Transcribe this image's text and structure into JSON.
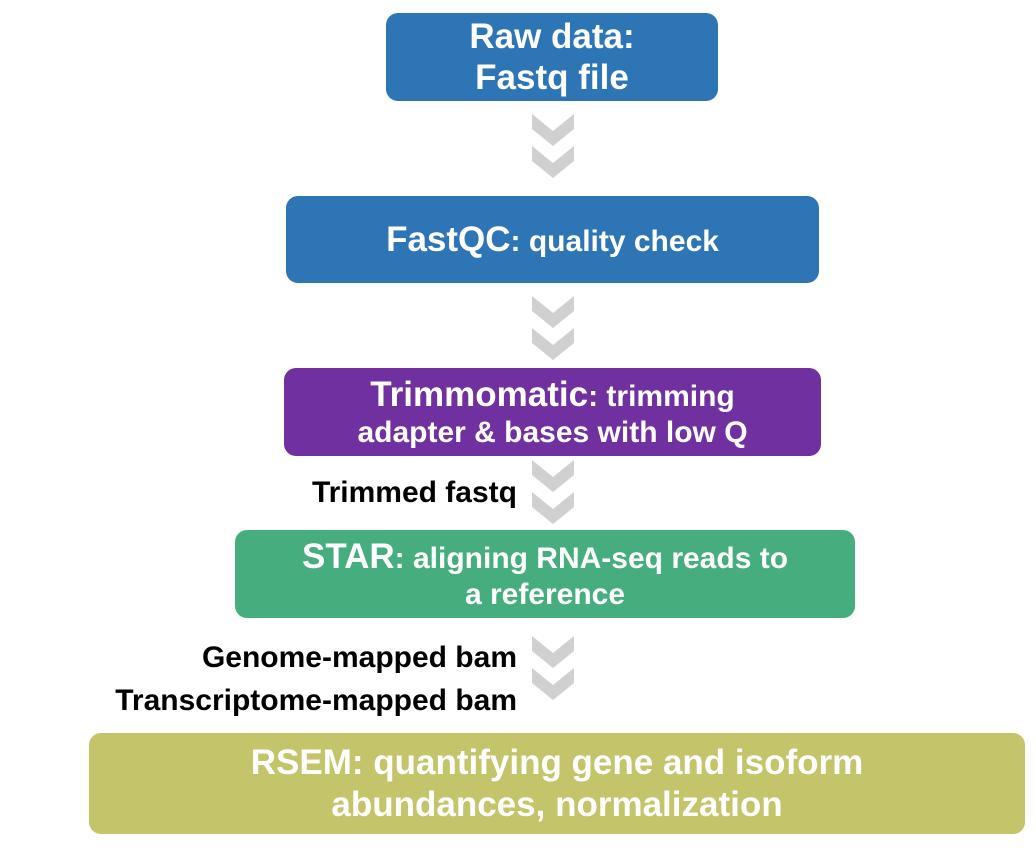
{
  "steps": {
    "raw": {
      "line1": "Raw data:",
      "line2": "Fastq file",
      "color": "#2e75b6"
    },
    "fastqc": {
      "tool": "FastQC",
      "desc": ": quality check",
      "color": "#2e75b6"
    },
    "trimmomatic": {
      "tool": "Trimmomatic",
      "desc1": ": trimming",
      "desc2": "adapter & bases with low Q",
      "color": "#7030a0"
    },
    "star": {
      "tool": "STAR",
      "desc1": ": aligning RNA-seq reads to",
      "desc2": "a reference",
      "color": "#46ad7f"
    },
    "rsem": {
      "tool": "RSEM",
      "desc1": ": quantifying gene and isoform",
      "desc2": "abundances, normalization",
      "color": "#c4c46a"
    }
  },
  "outputs": {
    "trimmed": "Trimmed fastq",
    "genome_bam": "Genome-mapped bam",
    "transcriptome_bam": "Transcriptome-mapped bam"
  },
  "arrow_color": "#d0d0d0",
  "arrow_icon": "double-chevron-down-icon"
}
